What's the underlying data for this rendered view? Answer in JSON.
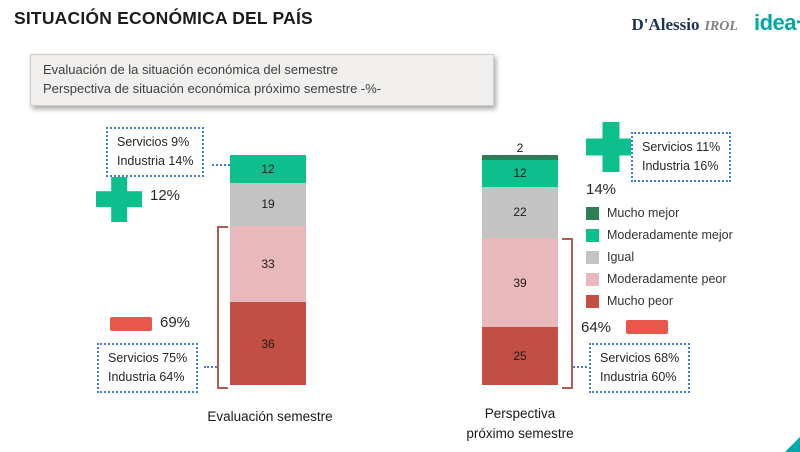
{
  "title": "SITUACIÓN ECONÓMICA DEL PAÍS",
  "logo": {
    "brand_serif": "D'Alessio",
    "brand_italic": "IROL",
    "brand_idea": "idea",
    "brand_idea_plus": "+"
  },
  "subtitle": {
    "line1": "Evaluación de la situación económica del semestre",
    "line2": "Perspectiva de situación económica próximo semestre -%-"
  },
  "colors": {
    "green": "#0cbf8d",
    "red": "#e8574b",
    "blue": "#3a7fd5",
    "bracket": "#b25c50",
    "teal": "#00a8a8"
  },
  "chart_data": {
    "type": "bar",
    "stacked": true,
    "unit": "%",
    "categories": [
      "Evaluación semestre",
      "Perspectiva próximo semestre"
    ],
    "series": [
      {
        "name": "Mucho mejor",
        "color": "#2e7d55",
        "values": [
          0,
          2
        ]
      },
      {
        "name": "Moderadamente mejor",
        "color": "#0cbf8d",
        "values": [
          12,
          12
        ]
      },
      {
        "name": "Igual",
        "color": "#c3c3c3",
        "values": [
          19,
          22
        ]
      },
      {
        "name": "Moderadamente peor",
        "color": "#e8b8bb",
        "values": [
          33,
          39
        ]
      },
      {
        "name": "Mucho peor",
        "color": "#c24f44",
        "values": [
          36,
          25
        ]
      }
    ],
    "ylim": [
      0,
      100
    ],
    "legend_position": "right",
    "grid": false
  },
  "annotations": {
    "left_pos_pct": "12%",
    "left_pos_line1": "Servicios 9%",
    "left_pos_line2": "Industria 14%",
    "left_neg_pct": "69%",
    "left_neg_line1": "Servicios 75%",
    "left_neg_line2": "Industria 64%",
    "right_pos_pct": "14%",
    "right_pos_line1": "Servicios 11%",
    "right_pos_line2": "Industria 16%",
    "right_neg_pct": "64%",
    "right_neg_line1": "Servicios 68%",
    "right_neg_line2": "Industria 60%"
  },
  "axis": {
    "left_label": "Evaluación semestre",
    "right_label_line1": "Perspectiva",
    "right_label_line2": "próximo semestre"
  }
}
